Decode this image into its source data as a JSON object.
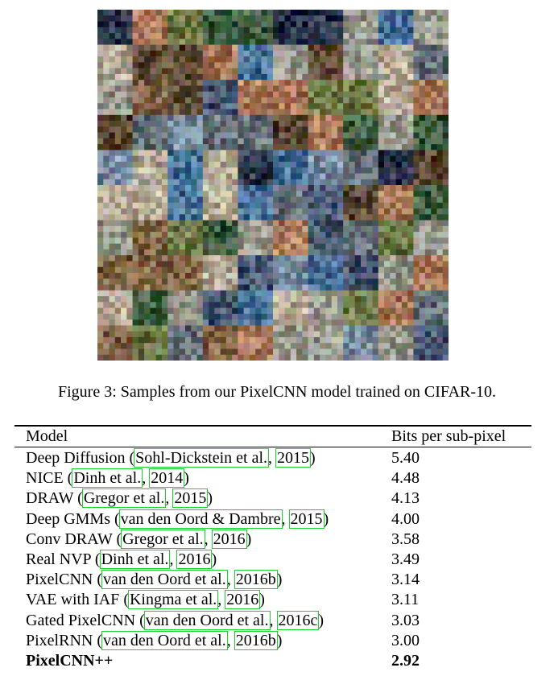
{
  "figure": {
    "rows": 10,
    "cols": 10,
    "caption": "Figure 3: Samples from our PixelCNN model trained on CIFAR-10."
  },
  "table": {
    "headers": [
      "Model",
      "Bits per sub-pixel"
    ],
    "rows": [
      {
        "name": "Deep Diffusion",
        "citeA": "Sohl-Dickstein et al.",
        "citeB": "2015",
        "value": "5.40"
      },
      {
        "name": "NICE",
        "citeA": "Dinh et al.",
        "citeB": "2014",
        "value": "4.48"
      },
      {
        "name": "DRAW",
        "citeA": "Gregor et al.",
        "citeB": "2015",
        "value": "4.13"
      },
      {
        "name": "Deep GMMs",
        "citeA": "van den Oord & Dambre",
        "citeB": "2015",
        "value": "4.00"
      },
      {
        "name": "Conv DRAW",
        "citeA": "Gregor et al.",
        "citeB": "2016",
        "value": "3.58"
      },
      {
        "name": "Real NVP",
        "citeA": "Dinh et al.",
        "citeB": "2016",
        "value": "3.49"
      },
      {
        "name": "PixelCNN",
        "citeA": "van den Oord et al.",
        "citeB": "2016b",
        "value": "3.14"
      },
      {
        "name": "VAE with IAF",
        "citeA": "Kingma et al.",
        "citeB": "2016",
        "value": "3.11"
      },
      {
        "name": "Gated PixelCNN",
        "citeA": "van den Oord et al.",
        "citeB": "2016c",
        "value": "3.03"
      },
      {
        "name": "PixelRNN",
        "citeA": "van den Oord et al.",
        "citeB": "2016b",
        "value": "3.00"
      }
    ],
    "final": {
      "name": "PixelCNN++",
      "value": "2.92"
    }
  }
}
